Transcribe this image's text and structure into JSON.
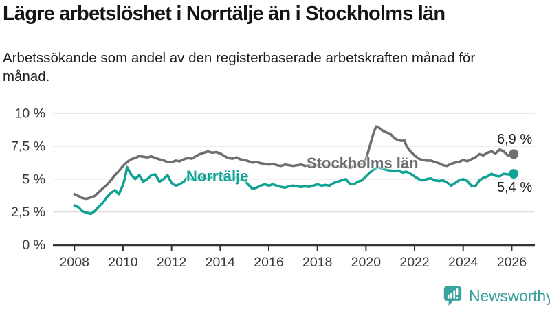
{
  "header": {
    "title": "Lägre arbetslöshet i Norrtälje än i Stockholms län",
    "subtitle": "Arbetssökande som andel av den registerbaserade arbetskraften månad för månad."
  },
  "chart_data": {
    "type": "line",
    "unit": "%",
    "grid": "horizontal",
    "xlim": [
      2007.2,
      2026.95
    ],
    "ylim": [
      0,
      10
    ],
    "x_ticks": [
      {
        "value": 2008,
        "label": "2008"
      },
      {
        "value": 2010,
        "label": "2010"
      },
      {
        "value": 2012,
        "label": "2012"
      },
      {
        "value": 2014,
        "label": "2014"
      },
      {
        "value": 2016,
        "label": "2016"
      },
      {
        "value": 2018,
        "label": "2018"
      },
      {
        "value": 2020,
        "label": "2020"
      },
      {
        "value": 2022,
        "label": "2022"
      },
      {
        "value": 2024,
        "label": "2024"
      },
      {
        "value": 2026,
        "label": "2026"
      }
    ],
    "y_ticks": [
      {
        "value": 0,
        "label": "0 %"
      },
      {
        "value": 2.5,
        "label": "2,5 %"
      },
      {
        "value": 5,
        "label": "5 %"
      },
      {
        "value": 7.5,
        "label": "7,5 %"
      },
      {
        "value": 10,
        "label": "10 %"
      }
    ],
    "series": [
      {
        "name": "Stockholms län",
        "color": "#6e6e73",
        "end_label": "6,9 %",
        "end_value": 6.9,
        "points": [
          [
            2008.0,
            3.85
          ],
          [
            2008.17,
            3.7
          ],
          [
            2008.33,
            3.55
          ],
          [
            2008.5,
            3.5
          ],
          [
            2008.67,
            3.6
          ],
          [
            2008.83,
            3.7
          ],
          [
            2009.0,
            4.0
          ],
          [
            2009.17,
            4.3
          ],
          [
            2009.33,
            4.55
          ],
          [
            2009.5,
            4.9
          ],
          [
            2009.67,
            5.3
          ],
          [
            2009.83,
            5.6
          ],
          [
            2010.0,
            6.0
          ],
          [
            2010.17,
            6.3
          ],
          [
            2010.33,
            6.5
          ],
          [
            2010.5,
            6.6
          ],
          [
            2010.67,
            6.75
          ],
          [
            2010.83,
            6.7
          ],
          [
            2011.0,
            6.65
          ],
          [
            2011.17,
            6.72
          ],
          [
            2011.33,
            6.6
          ],
          [
            2011.5,
            6.5
          ],
          [
            2011.67,
            6.42
          ],
          [
            2011.83,
            6.3
          ],
          [
            2012.0,
            6.28
          ],
          [
            2012.17,
            6.4
          ],
          [
            2012.33,
            6.35
          ],
          [
            2012.5,
            6.5
          ],
          [
            2012.67,
            6.6
          ],
          [
            2012.83,
            6.55
          ],
          [
            2013.0,
            6.75
          ],
          [
            2013.17,
            6.9
          ],
          [
            2013.33,
            7.0
          ],
          [
            2013.5,
            7.1
          ],
          [
            2013.67,
            7.0
          ],
          [
            2013.83,
            7.05
          ],
          [
            2014.0,
            6.95
          ],
          [
            2014.17,
            6.75
          ],
          [
            2014.33,
            6.6
          ],
          [
            2014.5,
            6.55
          ],
          [
            2014.67,
            6.65
          ],
          [
            2014.83,
            6.5
          ],
          [
            2015.0,
            6.45
          ],
          [
            2015.17,
            6.35
          ],
          [
            2015.33,
            6.25
          ],
          [
            2015.5,
            6.3
          ],
          [
            2015.67,
            6.2
          ],
          [
            2015.83,
            6.15
          ],
          [
            2016.0,
            6.1
          ],
          [
            2016.17,
            6.15
          ],
          [
            2016.33,
            6.05
          ],
          [
            2016.5,
            6.0
          ],
          [
            2016.67,
            6.1
          ],
          [
            2016.83,
            6.05
          ],
          [
            2017.0,
            6.0
          ],
          [
            2017.17,
            6.05
          ],
          [
            2017.33,
            6.1
          ],
          [
            2017.5,
            6.0
          ],
          [
            2017.67,
            6.05
          ],
          [
            2017.83,
            6.0
          ],
          [
            2018.0,
            6.05
          ],
          [
            2018.17,
            6.1
          ],
          [
            2018.33,
            6.0
          ],
          [
            2018.5,
            6.05
          ],
          [
            2018.67,
            6.0
          ],
          [
            2018.83,
            5.95
          ],
          [
            2019.0,
            5.9
          ],
          [
            2019.17,
            5.95
          ],
          [
            2019.33,
            5.85
          ],
          [
            2019.5,
            5.95
          ],
          [
            2019.67,
            6.05
          ],
          [
            2019.83,
            6.1
          ],
          [
            2020.0,
            6.5
          ],
          [
            2020.17,
            7.6
          ],
          [
            2020.33,
            8.6
          ],
          [
            2020.42,
            9.0
          ],
          [
            2020.5,
            8.95
          ],
          [
            2020.67,
            8.7
          ],
          [
            2020.83,
            8.55
          ],
          [
            2021.0,
            8.45
          ],
          [
            2021.17,
            8.1
          ],
          [
            2021.33,
            7.95
          ],
          [
            2021.5,
            7.9
          ],
          [
            2021.58,
            7.95
          ],
          [
            2021.67,
            7.5
          ],
          [
            2021.83,
            7.1
          ],
          [
            2022.0,
            6.8
          ],
          [
            2022.17,
            6.55
          ],
          [
            2022.33,
            6.45
          ],
          [
            2022.5,
            6.4
          ],
          [
            2022.67,
            6.4
          ],
          [
            2022.83,
            6.3
          ],
          [
            2023.0,
            6.2
          ],
          [
            2023.17,
            6.05
          ],
          [
            2023.33,
            6.0
          ],
          [
            2023.5,
            6.15
          ],
          [
            2023.67,
            6.25
          ],
          [
            2023.83,
            6.3
          ],
          [
            2024.0,
            6.45
          ],
          [
            2024.17,
            6.35
          ],
          [
            2024.33,
            6.5
          ],
          [
            2024.5,
            6.65
          ],
          [
            2024.67,
            6.9
          ],
          [
            2024.83,
            6.8
          ],
          [
            2025.0,
            7.0
          ],
          [
            2025.17,
            7.1
          ],
          [
            2025.33,
            6.95
          ],
          [
            2025.5,
            7.25
          ],
          [
            2025.67,
            7.1
          ],
          [
            2025.83,
            6.8
          ],
          [
            2026.08,
            6.9
          ]
        ]
      },
      {
        "name": "Norrtälje",
        "color": "#10a295",
        "end_label": "5,4 %",
        "end_value": 5.4,
        "points": [
          [
            2008.0,
            3.0
          ],
          [
            2008.17,
            2.85
          ],
          [
            2008.33,
            2.55
          ],
          [
            2008.5,
            2.45
          ],
          [
            2008.67,
            2.35
          ],
          [
            2008.83,
            2.55
          ],
          [
            2009.0,
            2.9
          ],
          [
            2009.17,
            3.2
          ],
          [
            2009.33,
            3.6
          ],
          [
            2009.5,
            3.95
          ],
          [
            2009.67,
            4.15
          ],
          [
            2009.83,
            3.85
          ],
          [
            2010.0,
            4.55
          ],
          [
            2010.08,
            5.1
          ],
          [
            2010.17,
            5.9
          ],
          [
            2010.33,
            5.35
          ],
          [
            2010.5,
            5.0
          ],
          [
            2010.67,
            5.3
          ],
          [
            2010.83,
            4.8
          ],
          [
            2011.0,
            5.0
          ],
          [
            2011.17,
            5.3
          ],
          [
            2011.33,
            5.35
          ],
          [
            2011.5,
            4.8
          ],
          [
            2011.67,
            5.0
          ],
          [
            2011.83,
            5.3
          ],
          [
            2012.0,
            4.7
          ],
          [
            2012.17,
            4.5
          ],
          [
            2012.33,
            4.6
          ],
          [
            2012.5,
            4.8
          ],
          [
            2012.67,
            5.2
          ],
          [
            2012.83,
            5.0
          ],
          [
            2013.0,
            4.9
          ],
          [
            2013.17,
            5.2
          ],
          [
            2013.33,
            5.05
          ],
          [
            2013.5,
            5.0
          ],
          [
            2013.67,
            5.15
          ],
          [
            2013.83,
            5.3
          ],
          [
            2014.0,
            5.4
          ],
          [
            2014.17,
            5.15
          ],
          [
            2014.33,
            5.05
          ],
          [
            2014.5,
            4.95
          ],
          [
            2014.67,
            5.1
          ],
          [
            2014.83,
            4.95
          ],
          [
            2015.0,
            4.9
          ],
          [
            2015.17,
            4.55
          ],
          [
            2015.33,
            4.25
          ],
          [
            2015.5,
            4.35
          ],
          [
            2015.67,
            4.5
          ],
          [
            2015.83,
            4.6
          ],
          [
            2016.0,
            4.5
          ],
          [
            2016.17,
            4.6
          ],
          [
            2016.33,
            4.5
          ],
          [
            2016.5,
            4.4
          ],
          [
            2016.67,
            4.35
          ],
          [
            2016.83,
            4.45
          ],
          [
            2017.0,
            4.5
          ],
          [
            2017.17,
            4.45
          ],
          [
            2017.33,
            4.4
          ],
          [
            2017.5,
            4.45
          ],
          [
            2017.67,
            4.4
          ],
          [
            2017.83,
            4.5
          ],
          [
            2018.0,
            4.6
          ],
          [
            2018.17,
            4.5
          ],
          [
            2018.33,
            4.55
          ],
          [
            2018.5,
            4.5
          ],
          [
            2018.67,
            4.7
          ],
          [
            2018.83,
            4.8
          ],
          [
            2019.0,
            4.9
          ],
          [
            2019.17,
            5.0
          ],
          [
            2019.33,
            4.65
          ],
          [
            2019.5,
            4.6
          ],
          [
            2019.67,
            4.8
          ],
          [
            2019.83,
            4.9
          ],
          [
            2020.0,
            5.2
          ],
          [
            2020.17,
            5.5
          ],
          [
            2020.33,
            5.75
          ],
          [
            2020.5,
            5.9
          ],
          [
            2020.67,
            5.8
          ],
          [
            2020.83,
            5.7
          ],
          [
            2021.0,
            5.65
          ],
          [
            2021.17,
            5.6
          ],
          [
            2021.33,
            5.65
          ],
          [
            2021.5,
            5.5
          ],
          [
            2021.67,
            5.55
          ],
          [
            2021.83,
            5.4
          ],
          [
            2022.0,
            5.2
          ],
          [
            2022.17,
            5.0
          ],
          [
            2022.33,
            4.9
          ],
          [
            2022.5,
            5.0
          ],
          [
            2022.67,
            5.05
          ],
          [
            2022.83,
            4.9
          ],
          [
            2023.0,
            4.85
          ],
          [
            2023.17,
            4.9
          ],
          [
            2023.33,
            4.75
          ],
          [
            2023.5,
            4.5
          ],
          [
            2023.67,
            4.7
          ],
          [
            2023.83,
            4.9
          ],
          [
            2024.0,
            5.0
          ],
          [
            2024.17,
            4.85
          ],
          [
            2024.33,
            4.5
          ],
          [
            2024.5,
            4.45
          ],
          [
            2024.67,
            4.9
          ],
          [
            2024.83,
            5.1
          ],
          [
            2025.0,
            5.2
          ],
          [
            2025.17,
            5.4
          ],
          [
            2025.33,
            5.25
          ],
          [
            2025.5,
            5.2
          ],
          [
            2025.67,
            5.4
          ],
          [
            2025.83,
            5.35
          ],
          [
            2026.08,
            5.4
          ]
        ]
      }
    ],
    "colors": {
      "grid": "#dcdcdc",
      "axis": "#333333",
      "tick_text": "#3a3a3a"
    }
  },
  "branding": {
    "logo_text": "Newsworthy",
    "logo_color": "#38a09b"
  }
}
